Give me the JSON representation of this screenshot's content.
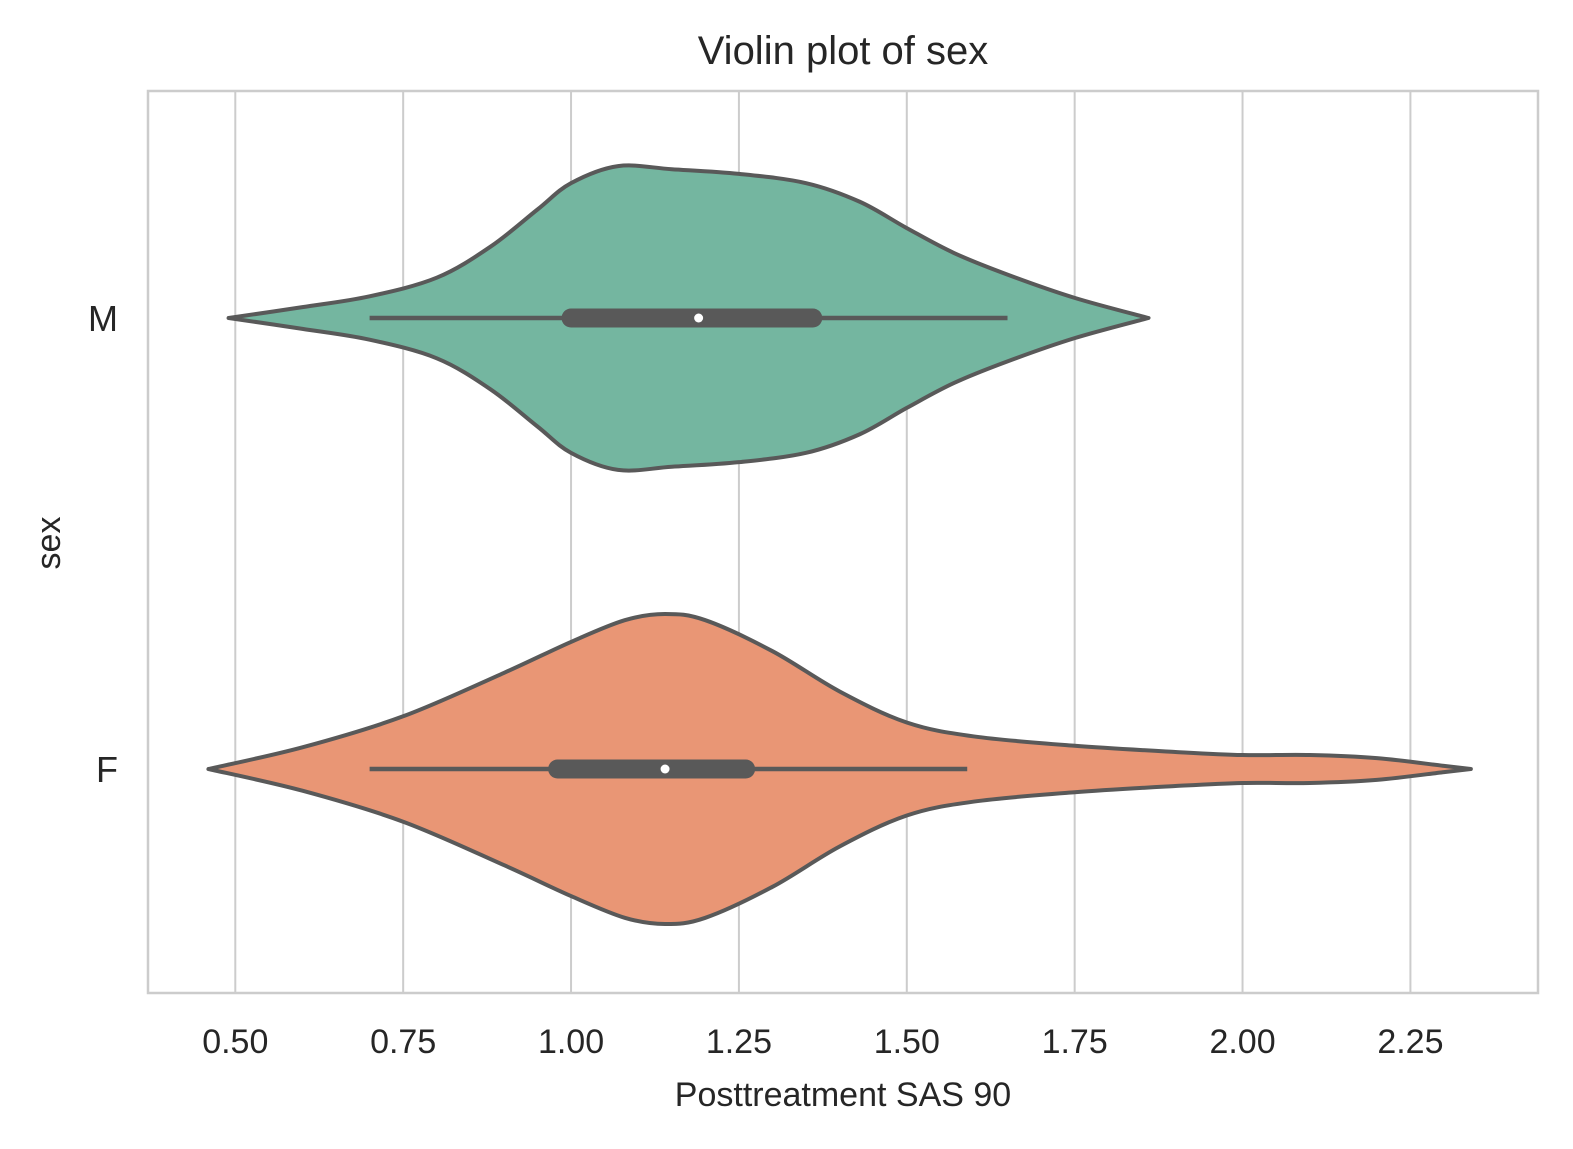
{
  "chart_data": {
    "type": "violin",
    "orientation": "horizontal",
    "title": "Violin plot of sex",
    "xlabel": "Posttreatment SAS 90",
    "ylabel": "sex",
    "xlim": [
      0.37,
      2.44
    ],
    "xticks": [
      0.5,
      0.75,
      1.0,
      1.25,
      1.5,
      1.75,
      2.0,
      2.25
    ],
    "xtick_labels": [
      "0.50",
      "0.75",
      "1.00",
      "1.25",
      "1.50",
      "1.75",
      "2.00",
      "2.25"
    ],
    "grid": "vertical",
    "line_color": "#595959",
    "series": [
      {
        "category": "M",
        "color": "#74b6a0",
        "whisker": [
          0.7,
          1.65
        ],
        "q1": 1.0,
        "median": 1.19,
        "q3": 1.36,
        "density": [
          [
            0.49,
            0.0
          ],
          [
            0.6,
            0.07
          ],
          [
            0.7,
            0.14
          ],
          [
            0.8,
            0.26
          ],
          [
            0.88,
            0.46
          ],
          [
            0.95,
            0.7
          ],
          [
            1.0,
            0.87
          ],
          [
            1.07,
            0.98
          ],
          [
            1.15,
            0.96
          ],
          [
            1.25,
            0.93
          ],
          [
            1.35,
            0.87
          ],
          [
            1.43,
            0.75
          ],
          [
            1.5,
            0.58
          ],
          [
            1.57,
            0.42
          ],
          [
            1.65,
            0.28
          ],
          [
            1.75,
            0.13
          ],
          [
            1.86,
            0.0
          ]
        ]
      },
      {
        "category": "F",
        "color": "#e99675",
        "whisker": [
          0.7,
          1.59
        ],
        "q1": 0.98,
        "median": 1.14,
        "q3": 1.26,
        "density": [
          [
            0.46,
            0.0
          ],
          [
            0.6,
            0.14
          ],
          [
            0.75,
            0.34
          ],
          [
            0.9,
            0.62
          ],
          [
            1.0,
            0.82
          ],
          [
            1.08,
            0.96
          ],
          [
            1.14,
            1.0
          ],
          [
            1.2,
            0.96
          ],
          [
            1.3,
            0.76
          ],
          [
            1.4,
            0.5
          ],
          [
            1.5,
            0.3
          ],
          [
            1.6,
            0.21
          ],
          [
            1.75,
            0.15
          ],
          [
            1.9,
            0.11
          ],
          [
            2.0,
            0.09
          ],
          [
            2.1,
            0.09
          ],
          [
            2.2,
            0.07
          ],
          [
            2.3,
            0.02
          ],
          [
            2.34,
            0.0
          ]
        ]
      }
    ]
  }
}
